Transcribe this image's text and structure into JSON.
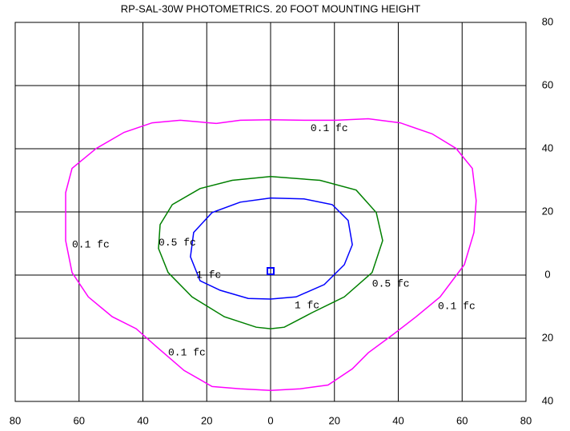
{
  "chart_data": {
    "type": "contour",
    "title": "RP-SAL-30W PHOTOMETRICS.  20 FOOT MOUNTING HEIGHT",
    "xlim": [
      -80,
      80
    ],
    "ylim": [
      -40,
      80
    ],
    "xticks": [
      {
        "value": -80,
        "label": "80"
      },
      {
        "value": -60,
        "label": "60"
      },
      {
        "value": -40,
        "label": "40"
      },
      {
        "value": -20,
        "label": "20"
      },
      0,
      20,
      40,
      60,
      80
    ],
    "yticks": [
      {
        "value": -40,
        "label": "40"
      },
      {
        "value": -20,
        "label": "20"
      },
      0,
      20,
      40,
      60,
      80
    ],
    "grid": true,
    "series": [
      {
        "color": "#ff00ff",
        "x": [
          -17,
          -28.3,
          -37.1,
          -45.9,
          -54.6,
          -62.2,
          -64.2,
          -64.2,
          -62.2,
          -57.1,
          -49.6,
          -42.1,
          -35.8,
          -27.1,
          -18.3,
          -9.5,
          0,
          9.3,
          18,
          25.6,
          30.6,
          38.1,
          45.6,
          53.1,
          60.7,
          63.7,
          64.4,
          63.2,
          58.1,
          50.6,
          40.6,
          30.6,
          20.6,
          10.5,
          0,
          -9.5,
          -17
        ],
        "y": [
          48,
          49,
          48.2,
          45.2,
          40.1,
          33.8,
          26.1,
          10.9,
          0.8,
          -6.9,
          -13.2,
          -17,
          -22.6,
          -30.2,
          -35.3,
          -36,
          -36.5,
          -36,
          -34.8,
          -29.7,
          -24.6,
          -19,
          -13.2,
          -6.9,
          3.3,
          13.5,
          23.6,
          33.8,
          40.1,
          44.7,
          48.2,
          49.5,
          49,
          49,
          49.2,
          49,
          48
        ]
      },
      {
        "color": "#008000",
        "x": [
          0,
          -12,
          -22.1,
          -30.8,
          -34.6,
          -35.1,
          -32.1,
          -24.6,
          -14.5,
          -4.5,
          0,
          4.3,
          13,
          23.1,
          31.8,
          35.1,
          33.1,
          26.8,
          15.5,
          0
        ],
        "y": [
          31.2,
          30,
          27.4,
          22.3,
          16,
          8.4,
          0.8,
          -6.9,
          -13.2,
          -16.5,
          -17,
          -16.5,
          -11.9,
          -6.9,
          0.8,
          10.9,
          19.8,
          26.9,
          30,
          31.2
        ]
      },
      {
        "color": "#0000ff",
        "x": [
          0,
          -9.5,
          -18.3,
          -24.1,
          -25.1,
          -22.1,
          -15.8,
          -7,
          0,
          8,
          16.8,
          23.1,
          25.6,
          24.3,
          19.3,
          10.5,
          0
        ],
        "y": [
          24.4,
          23.1,
          19.8,
          13.5,
          5.8,
          -1.8,
          -4.8,
          -7.4,
          -7.6,
          -6.9,
          -3,
          3.3,
          9.6,
          17.3,
          22.3,
          24.1,
          24.4
        ]
      }
    ],
    "annotations": [
      {
        "text": "0.1 fc",
        "x": 12.5,
        "y": 46.4,
        "color": "#ff00ff"
      },
      {
        "text": "0.1 fc",
        "x": -62.2,
        "y": 9.6,
        "color": "#ff00ff"
      },
      {
        "text": "0.1 fc",
        "x": -32.1,
        "y": -24.6,
        "color": "#ff00ff"
      },
      {
        "text": "0.1 fc",
        "x": 52.4,
        "y": -9.9,
        "color": "#ff00ff"
      },
      {
        "text": "0.5 fc",
        "x": -35.1,
        "y": 10.2,
        "color": "#008000"
      },
      {
        "text": "0.5 fc",
        "x": 31.8,
        "y": -2.8,
        "color": "#008000"
      },
      {
        "text": "1 fc",
        "x": -23.3,
        "y": 0,
        "color": "#0000ff"
      },
      {
        "text": "1 fc",
        "x": 7.5,
        "y": -9.6,
        "color": "#0000ff"
      }
    ]
  }
}
